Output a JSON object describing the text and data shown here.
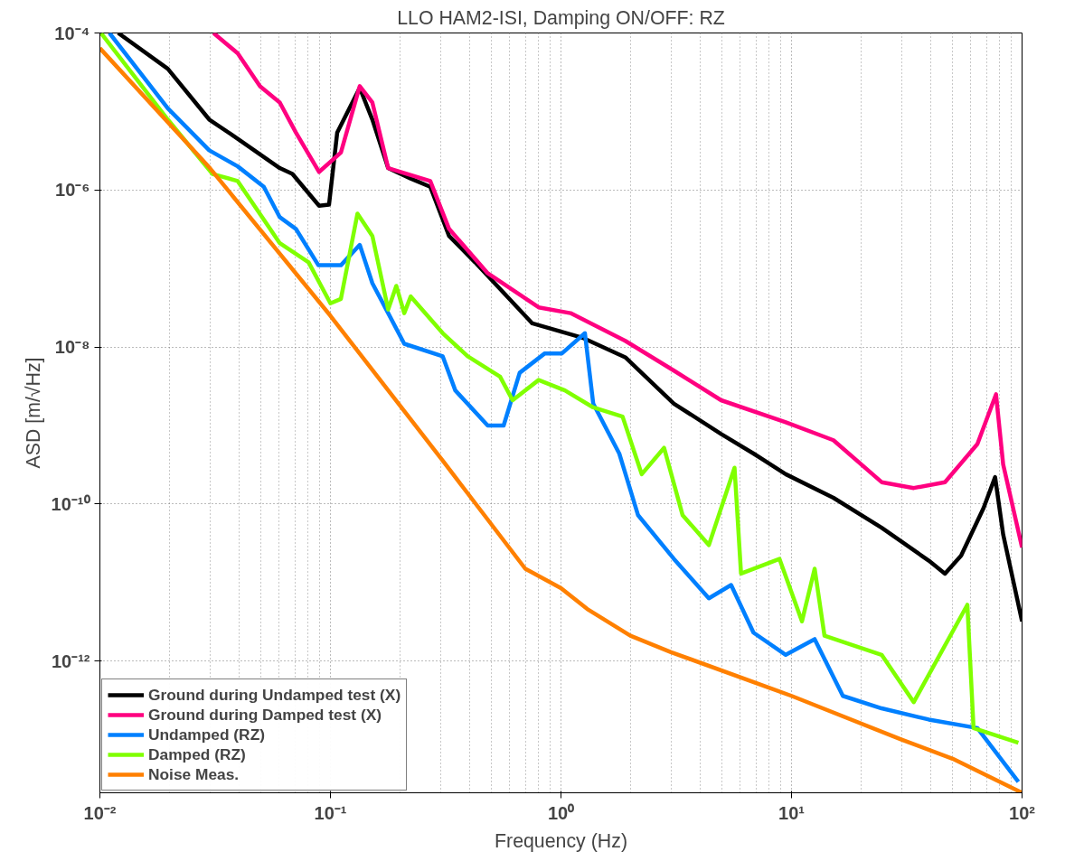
{
  "chart_data": {
    "type": "line",
    "title": "LLO HAM2-ISI, Damping ON/OFF: RZ",
    "xlabel": "Frequency (Hz)",
    "ylabel": "ASD [m/√Hz]",
    "log": "xy",
    "grid": true,
    "legend": "bottom left",
    "marker": "none",
    "line_style": "solid",
    "xlim": [
      0.01,
      100
    ],
    "ylim": [
      2.1e-14,
      0.0001
    ],
    "xticks": [
      {
        "value": 0.01,
        "label": "10⁻²"
      },
      {
        "value": 0.1,
        "label": "10⁻¹"
      },
      {
        "value": 1,
        "label": "10⁰"
      },
      {
        "value": 10,
        "label": "10¹"
      },
      {
        "value": 100,
        "label": "10²"
      }
    ],
    "yticks": [
      {
        "value": 0.0001,
        "label": "10⁻⁴"
      },
      {
        "value": 1e-06,
        "label": "10⁻⁶"
      },
      {
        "value": 1e-08,
        "label": "10⁻⁸"
      },
      {
        "value": 1e-10,
        "label": "10⁻¹⁰"
      },
      {
        "value": 1e-12,
        "label": "10⁻¹²"
      }
    ],
    "series": [
      {
        "name": "Ground during Undamped test (X)",
        "color": "#000000",
        "x": [
          0.012,
          0.0197,
          0.0298,
          0.0396,
          0.0603,
          0.0684,
          0.0893,
          0.0986,
          0.107,
          0.134,
          0.152,
          0.178,
          0.223,
          0.271,
          0.327,
          0.424,
          0.751,
          1.25,
          1.9,
          3.09,
          4.95,
          6.84,
          9.44,
          15.2,
          24.6,
          39.4,
          46.3,
          54.4,
          68.1,
          76.4,
          82.8,
          100
        ],
        "values": [
          0.0001,
          3.5e-05,
          7.9e-06,
          4.5e-06,
          1.9e-06,
          1.6e-06,
          6.3e-07,
          6.5e-07,
          5.4e-06,
          2e-05,
          7.9e-06,
          1.9e-06,
          1.4e-06,
          1.1e-06,
          2.6e-07,
          1.2e-07,
          2e-08,
          1.3e-08,
          7.4e-09,
          1.9e-09,
          7.8e-10,
          4.4e-10,
          2.4e-10,
          1.2e-10,
          5e-11,
          1.9e-11,
          1.3e-11,
          2.2e-11,
          8.9e-11,
          2.2e-10,
          4.1e-11,
          3.2e-12
        ]
      },
      {
        "name": "Ground during Damped test (X)",
        "color": "#ff0080",
        "x": [
          0.0311,
          0.0396,
          0.0495,
          0.0603,
          0.0708,
          0.0893,
          0.111,
          0.134,
          0.152,
          0.178,
          0.271,
          0.327,
          0.481,
          0.8,
          1.1,
          1.9,
          3.09,
          4.95,
          9.44,
          15.2,
          24.6,
          33.9,
          46.3,
          64.0,
          77.1,
          82.8,
          100
        ],
        "values": [
          0.0001,
          5.5e-05,
          2.1e-05,
          1.3e-05,
          5.4e-06,
          1.7e-06,
          3e-06,
          2.1e-05,
          1.3e-05,
          1.9e-06,
          1.3e-06,
          3.2e-07,
          8.7e-08,
          3.2e-08,
          2.7e-08,
          1.2e-08,
          5e-09,
          2.1e-09,
          1.1e-09,
          6.5e-10,
          1.9e-10,
          1.6e-10,
          1.9e-10,
          5.8e-10,
          2.5e-09,
          3.2e-10,
          2.8e-11
        ]
      },
      {
        "name": "Undamped (RZ)",
        "color": "#0080ff",
        "x": [
          0.011,
          0.0197,
          0.0298,
          0.0396,
          0.0514,
          0.0603,
          0.0708,
          0.0887,
          0.111,
          0.134,
          0.152,
          0.178,
          0.209,
          0.307,
          0.348,
          0.481,
          0.564,
          0.662,
          0.851,
          1.01,
          1.27,
          1.38,
          1.79,
          2.16,
          3.09,
          4.38,
          5.47,
          6.84,
          9.44,
          12.6,
          16.7,
          24.6,
          39.4,
          64.0,
          96.4
        ],
        "values": [
          0.0001,
          1.1e-05,
          3.2e-06,
          2e-06,
          1.1e-06,
          4.5e-07,
          3.2e-07,
          1.1e-07,
          1.1e-07,
          2e-07,
          6.5e-08,
          2.7e-08,
          1.1e-08,
          7.6e-09,
          2.8e-09,
          1e-09,
          1e-09,
          4.7e-09,
          8.3e-09,
          8.3e-09,
          1.5e-08,
          1.9e-09,
          4.4e-10,
          7.2e-11,
          2e-11,
          6.3e-12,
          9.3e-12,
          2.3e-12,
          1.2e-12,
          1.9e-12,
          3.6e-13,
          2.5e-13,
          1.8e-13,
          1.4e-13,
          2.9e-14
        ]
      },
      {
        "name": "Damped (RZ)",
        "color": "#80ff00",
        "x": [
          0.0101,
          0.0197,
          0.0308,
          0.0396,
          0.0603,
          0.0804,
          0.1,
          0.111,
          0.131,
          0.152,
          0.178,
          0.193,
          0.209,
          0.223,
          0.307,
          0.394,
          0.544,
          0.617,
          0.8,
          1.04,
          1.38,
          1.85,
          2.24,
          2.8,
          3.37,
          4.38,
          5.66,
          6.04,
          8.87,
          11.1,
          12.6,
          13.9,
          24.6,
          33.9,
          57.9,
          61.6,
          96.4
        ],
        "values": [
          0.0001,
          7.9e-06,
          1.6e-06,
          1.3e-06,
          2.1e-07,
          1.2e-07,
          3.6e-08,
          4.1e-08,
          5e-07,
          2.6e-07,
          3e-08,
          6e-08,
          2.7e-08,
          4.4e-08,
          1.5e-08,
          7.6e-09,
          4.2e-09,
          2.1e-09,
          3.8e-09,
          2.8e-09,
          1.7e-09,
          1.3e-09,
          2.4e-10,
          5.2e-10,
          7.2e-11,
          3e-11,
          2.9e-10,
          1.3e-11,
          2e-11,
          3.2e-12,
          1.5e-11,
          2.1e-12,
          1.2e-12,
          3e-13,
          5.2e-12,
          1.4e-13,
          9.1e-14
        ]
      },
      {
        "name": "Noise Meas.",
        "color": "#ff8000",
        "x": [
          0.01,
          0.03,
          0.1,
          0.3,
          0.7,
          1,
          1.3,
          2,
          3,
          10,
          30,
          50,
          100
        ],
        "values": [
          6.4e-05,
          1.9e-06,
          2.5e-08,
          3.9e-10,
          1.5e-11,
          8.5e-12,
          4.6e-12,
          2.1e-12,
          1.3e-12,
          3.6e-13,
          1e-13,
          5.7e-14,
          2.1e-14
        ]
      }
    ]
  }
}
